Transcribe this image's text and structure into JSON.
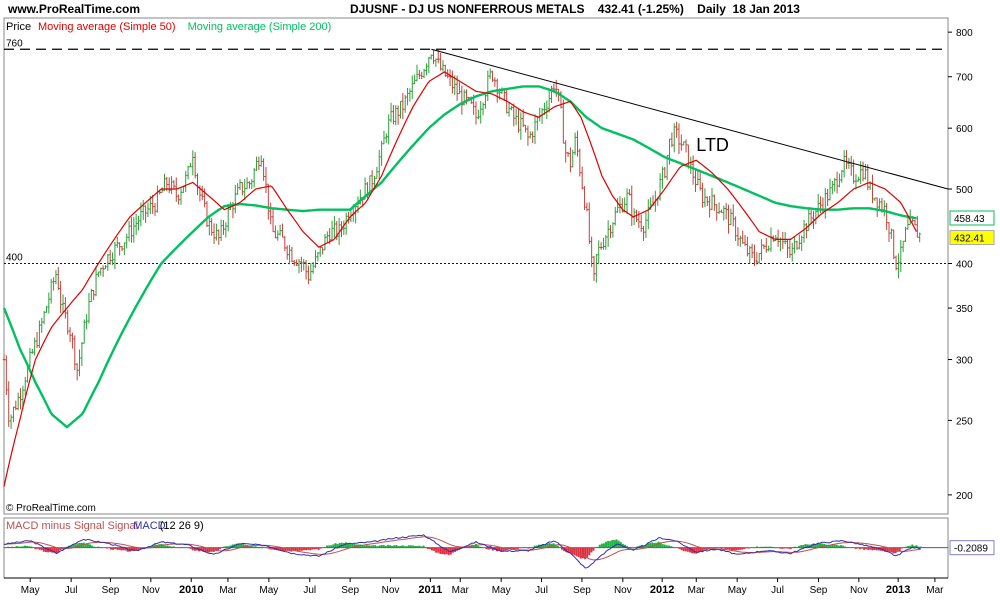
{
  "header": {
    "site": "www.ProRealTime.com",
    "title": "DJUSNF - DJ US NONFERROUS METALS    432.41 (-1.25%)    Daily  18 Jan 2013"
  },
  "watermark": "© ProRealTime.com",
  "colors": {
    "price_up": "#2e9e3c",
    "price_down": "#c0443a",
    "ma50": "#dd0000",
    "ma200": "#00c060",
    "macd_line": "#3030b0",
    "signal_line": "#c05050",
    "hist_pos": "#20b040",
    "hist_neg": "#e03040",
    "hline": "#0000cc",
    "trend": "#000000",
    "last_price_bg": "#ffff00",
    "ma200_tag_border": "#00c060"
  },
  "chart_data": [
    {
      "type": "line",
      "title": "DJUSNF - DJ US NONFERROUS METALS",
      "scale": "log",
      "ylim": [
        190,
        810
      ],
      "y_ticks": [
        200,
        250,
        300,
        350,
        400,
        500,
        600,
        700,
        800
      ],
      "legend": [
        {
          "label": "Price",
          "color": "#000000"
        },
        {
          "label": "Moving average (Simple 50)",
          "color": "#dd0000"
        },
        {
          "label": "Moving average (Simple 200)",
          "color": "#00c060"
        }
      ],
      "x_labels": [
        {
          "label": "May",
          "t": 0.05,
          "bold": false
        },
        {
          "label": "Jul",
          "t": 0.128,
          "bold": false
        },
        {
          "label": "Sep",
          "t": 0.203,
          "bold": false
        },
        {
          "label": "Nov",
          "t": 0.28,
          "bold": false
        },
        {
          "label": "2010",
          "t": 0.357,
          "bold": true
        },
        {
          "label": "Mar",
          "t": 0.427,
          "bold": false
        },
        {
          "label": "May",
          "t": 0.505,
          "bold": false
        },
        {
          "label": "Jul",
          "t": 0.583,
          "bold": false
        },
        {
          "label": "Sep",
          "t": 0.66,
          "bold": false
        },
        {
          "label": "Nov",
          "t": 0.737,
          "bold": false
        },
        {
          "label": "2011",
          "t": 0.813,
          "bold": true
        },
        {
          "label": "Mar",
          "t": 0.87,
          "bold": false
        },
        {
          "label": "May",
          "t": 0.948,
          "bold": false
        },
        {
          "label": "Jul",
          "t": 1.025,
          "bold": false
        },
        {
          "label": "Sep",
          "t": 1.102,
          "bold": false
        },
        {
          "label": "Nov",
          "t": 1.18,
          "bold": false
        },
        {
          "label": "2012",
          "t": 1.255,
          "bold": true
        },
        {
          "label": "Mar",
          "t": 1.32,
          "bold": false
        },
        {
          "label": "May",
          "t": 1.398,
          "bold": false
        },
        {
          "label": "Jul",
          "t": 1.475,
          "bold": false
        },
        {
          "label": "Sep",
          "t": 1.553,
          "bold": false
        },
        {
          "label": "Nov",
          "t": 1.63,
          "bold": false
        },
        {
          "label": "2013",
          "t": 1.705,
          "bold": true
        },
        {
          "label": "Mar",
          "t": 1.775,
          "bold": false
        }
      ],
      "t_range": [
        0,
        1.8
      ],
      "price_keypoints": [
        [
          0.0,
          300
        ],
        [
          0.01,
          250
        ],
        [
          0.03,
          270
        ],
        [
          0.05,
          300
        ],
        [
          0.07,
          330
        ],
        [
          0.09,
          370
        ],
        [
          0.1,
          390
        ],
        [
          0.11,
          350
        ],
        [
          0.125,
          330
        ],
        [
          0.14,
          290
        ],
        [
          0.16,
          350
        ],
        [
          0.18,
          390
        ],
        [
          0.2,
          410
        ],
        [
          0.23,
          430
        ],
        [
          0.26,
          460
        ],
        [
          0.29,
          480
        ],
        [
          0.31,
          510
        ],
        [
          0.33,
          490
        ],
        [
          0.35,
          520
        ],
        [
          0.36,
          560
        ],
        [
          0.37,
          500
        ],
        [
          0.39,
          450
        ],
        [
          0.41,
          430
        ],
        [
          0.43,
          470
        ],
        [
          0.45,
          500
        ],
        [
          0.47,
          510
        ],
        [
          0.49,
          560
        ],
        [
          0.5,
          500
        ],
        [
          0.51,
          440
        ],
        [
          0.53,
          430
        ],
        [
          0.55,
          410
        ],
        [
          0.57,
          400
        ],
        [
          0.58,
          385
        ],
        [
          0.6,
          410
        ],
        [
          0.62,
          440
        ],
        [
          0.64,
          440
        ],
        [
          0.66,
          470
        ],
        [
          0.68,
          490
        ],
        [
          0.7,
          510
        ],
        [
          0.72,
          560
        ],
        [
          0.73,
          600
        ],
        [
          0.74,
          620
        ],
        [
          0.76,
          640
        ],
        [
          0.78,
          680
        ],
        [
          0.8,
          720
        ],
        [
          0.815,
          760
        ],
        [
          0.83,
          720
        ],
        [
          0.85,
          690
        ],
        [
          0.87,
          660
        ],
        [
          0.89,
          640
        ],
        [
          0.9,
          620
        ],
        [
          0.92,
          680
        ],
        [
          0.93,
          710
        ],
        [
          0.95,
          660
        ],
        [
          0.97,
          620
        ],
        [
          0.99,
          600
        ],
        [
          1.0,
          580
        ],
        [
          1.02,
          620
        ],
        [
          1.04,
          660
        ],
        [
          1.05,
          690
        ],
        [
          1.06,
          640
        ],
        [
          1.07,
          560
        ],
        [
          1.08,
          540
        ],
        [
          1.09,
          580
        ],
        [
          1.1,
          520
        ],
        [
          1.11,
          470
        ],
        [
          1.12,
          400
        ],
        [
          1.125,
          380
        ],
        [
          1.13,
          410
        ],
        [
          1.15,
          440
        ],
        [
          1.17,
          470
        ],
        [
          1.19,
          490
        ],
        [
          1.2,
          460
        ],
        [
          1.22,
          450
        ],
        [
          1.24,
          480
        ],
        [
          1.26,
          530
        ],
        [
          1.27,
          580
        ],
        [
          1.28,
          590
        ],
        [
          1.3,
          560
        ],
        [
          1.31,
          530
        ],
        [
          1.33,
          490
        ],
        [
          1.35,
          480
        ],
        [
          1.37,
          470
        ],
        [
          1.39,
          450
        ],
        [
          1.41,
          420
        ],
        [
          1.43,
          405
        ],
        [
          1.45,
          420
        ],
        [
          1.47,
          440
        ],
        [
          1.49,
          420
        ],
        [
          1.5,
          410
        ],
        [
          1.52,
          440
        ],
        [
          1.54,
          460
        ],
        [
          1.56,
          480
        ],
        [
          1.58,
          500
        ],
        [
          1.6,
          540
        ],
        [
          1.62,
          520
        ],
        [
          1.64,
          530
        ],
        [
          1.65,
          500
        ],
        [
          1.67,
          480
        ],
        [
          1.68,
          470
        ],
        [
          1.69,
          440
        ],
        [
          1.7,
          400
        ],
        [
          1.71,
          410
        ],
        [
          1.72,
          440
        ],
        [
          1.73,
          450
        ],
        [
          1.74,
          440
        ],
        [
          1.75,
          432
        ]
      ],
      "ma50_keypoints": [
        [
          0.0,
          205
        ],
        [
          0.03,
          250
        ],
        [
          0.06,
          300
        ],
        [
          0.09,
          330
        ],
        [
          0.12,
          350
        ],
        [
          0.15,
          370
        ],
        [
          0.18,
          400
        ],
        [
          0.21,
          430
        ],
        [
          0.24,
          460
        ],
        [
          0.27,
          480
        ],
        [
          0.3,
          500
        ],
        [
          0.33,
          500
        ],
        [
          0.36,
          510
        ],
        [
          0.39,
          490
        ],
        [
          0.42,
          470
        ],
        [
          0.45,
          480
        ],
        [
          0.48,
          500
        ],
        [
          0.51,
          505
        ],
        [
          0.54,
          470
        ],
        [
          0.57,
          440
        ],
        [
          0.6,
          420
        ],
        [
          0.63,
          430
        ],
        [
          0.66,
          460
        ],
        [
          0.69,
          480
        ],
        [
          0.72,
          520
        ],
        [
          0.75,
          580
        ],
        [
          0.78,
          640
        ],
        [
          0.81,
          690
        ],
        [
          0.84,
          710
        ],
        [
          0.87,
          690
        ],
        [
          0.9,
          670
        ],
        [
          0.93,
          665
        ],
        [
          0.96,
          650
        ],
        [
          0.99,
          630
        ],
        [
          1.02,
          620
        ],
        [
          1.05,
          640
        ],
        [
          1.08,
          650
        ],
        [
          1.1,
          620
        ],
        [
          1.12,
          570
        ],
        [
          1.14,
          520
        ],
        [
          1.16,
          490
        ],
        [
          1.18,
          470
        ],
        [
          1.2,
          460
        ],
        [
          1.23,
          470
        ],
        [
          1.26,
          500
        ],
        [
          1.29,
          535
        ],
        [
          1.32,
          545
        ],
        [
          1.35,
          525
        ],
        [
          1.38,
          500
        ],
        [
          1.41,
          470
        ],
        [
          1.44,
          440
        ],
        [
          1.47,
          430
        ],
        [
          1.5,
          430
        ],
        [
          1.53,
          445
        ],
        [
          1.56,
          465
        ],
        [
          1.59,
          480
        ],
        [
          1.62,
          500
        ],
        [
          1.65,
          510
        ],
        [
          1.68,
          500
        ],
        [
          1.71,
          480
        ],
        [
          1.74,
          440
        ]
      ],
      "ma200_keypoints": [
        [
          0.0,
          350
        ],
        [
          0.03,
          310
        ],
        [
          0.06,
          280
        ],
        [
          0.09,
          255
        ],
        [
          0.12,
          245
        ],
        [
          0.15,
          255
        ],
        [
          0.18,
          280
        ],
        [
          0.21,
          310
        ],
        [
          0.24,
          340
        ],
        [
          0.27,
          370
        ],
        [
          0.3,
          400
        ],
        [
          0.33,
          420
        ],
        [
          0.36,
          440
        ],
        [
          0.39,
          460
        ],
        [
          0.42,
          475
        ],
        [
          0.45,
          478
        ],
        [
          0.48,
          476
        ],
        [
          0.51,
          472
        ],
        [
          0.54,
          470
        ],
        [
          0.57,
          468
        ],
        [
          0.6,
          470
        ],
        [
          0.63,
          470
        ],
        [
          0.66,
          470
        ],
        [
          0.69,
          490
        ],
        [
          0.72,
          510
        ],
        [
          0.75,
          540
        ],
        [
          0.78,
          570
        ],
        [
          0.81,
          600
        ],
        [
          0.84,
          625
        ],
        [
          0.87,
          645
        ],
        [
          0.9,
          660
        ],
        [
          0.93,
          670
        ],
        [
          0.96,
          675
        ],
        [
          0.99,
          680
        ],
        [
          1.02,
          680
        ],
        [
          1.05,
          670
        ],
        [
          1.08,
          650
        ],
        [
          1.11,
          620
        ],
        [
          1.14,
          600
        ],
        [
          1.17,
          590
        ],
        [
          1.2,
          580
        ],
        [
          1.23,
          565
        ],
        [
          1.26,
          550
        ],
        [
          1.29,
          540
        ],
        [
          1.32,
          530
        ],
        [
          1.35,
          520
        ],
        [
          1.38,
          510
        ],
        [
          1.41,
          500
        ],
        [
          1.44,
          490
        ],
        [
          1.47,
          480
        ],
        [
          1.5,
          475
        ],
        [
          1.53,
          472
        ],
        [
          1.56,
          470
        ],
        [
          1.59,
          470
        ],
        [
          1.62,
          472
        ],
        [
          1.65,
          472
        ],
        [
          1.68,
          468
        ],
        [
          1.71,
          462
        ],
        [
          1.74,
          458
        ]
      ],
      "reference_lines": [
        {
          "label": "760",
          "value": 760,
          "style": "dash-black"
        },
        {
          "label": "400",
          "value": 400,
          "style": "dot-blue"
        }
      ],
      "trend_line": {
        "label": "LTD",
        "from": [
          0.815,
          760
        ],
        "to": [
          1.8,
          500
        ]
      },
      "last_price_tag": "432.41",
      "ma200_tag": "458.43"
    },
    {
      "type": "line",
      "title": "MACD minus Signal Signal MACD (12 26 9)",
      "legend": [
        {
          "label": "MACD minus Signal Signal",
          "color": "#c05050"
        },
        {
          "label": " MACD",
          "color": "#3030b0"
        },
        {
          "label": " (12 26 9)",
          "color": "#000000"
        }
      ],
      "last_value": "-0.2089",
      "ylim": [
        -40,
        25
      ],
      "macd_keypoints": [
        [
          0.0,
          5
        ],
        [
          0.05,
          10
        ],
        [
          0.1,
          -8
        ],
        [
          0.15,
          12
        ],
        [
          0.2,
          6
        ],
        [
          0.25,
          -5
        ],
        [
          0.3,
          8
        ],
        [
          0.35,
          4
        ],
        [
          0.4,
          -10
        ],
        [
          0.45,
          6
        ],
        [
          0.5,
          3
        ],
        [
          0.55,
          -8
        ],
        [
          0.6,
          -12
        ],
        [
          0.65,
          5
        ],
        [
          0.7,
          8
        ],
        [
          0.75,
          14
        ],
        [
          0.8,
          18
        ],
        [
          0.85,
          -6
        ],
        [
          0.9,
          8
        ],
        [
          0.95,
          -5
        ],
        [
          1.0,
          -4
        ],
        [
          1.05,
          10
        ],
        [
          1.08,
          -8
        ],
        [
          1.11,
          -30
        ],
        [
          1.14,
          -10
        ],
        [
          1.17,
          6
        ],
        [
          1.2,
          -4
        ],
        [
          1.25,
          14
        ],
        [
          1.28,
          10
        ],
        [
          1.32,
          -6
        ],
        [
          1.36,
          -2
        ],
        [
          1.4,
          -10
        ],
        [
          1.45,
          -4
        ],
        [
          1.5,
          -8
        ],
        [
          1.55,
          6
        ],
        [
          1.6,
          10
        ],
        [
          1.65,
          2
        ],
        [
          1.68,
          -4
        ],
        [
          1.7,
          -12
        ],
        [
          1.73,
          0
        ],
        [
          1.75,
          -0.2
        ]
      ]
    }
  ]
}
